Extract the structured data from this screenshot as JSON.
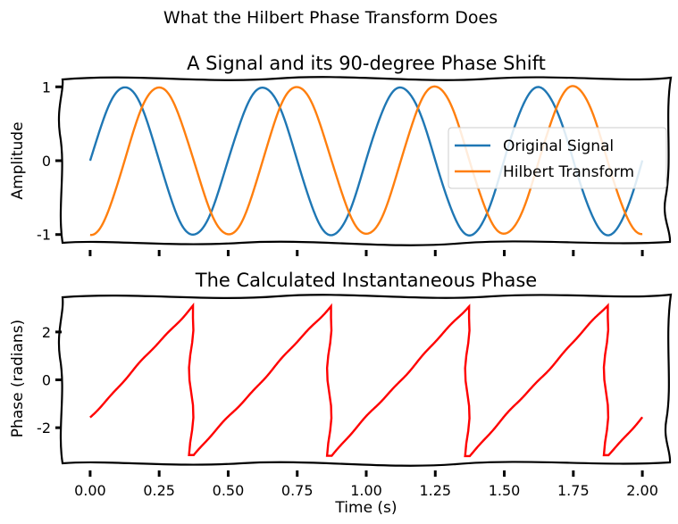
{
  "figure_title": "What the Hilbert Phase Transform Does",
  "chart_data": [
    {
      "type": "line",
      "title": "A Signal and its 90-degree Phase Shift",
      "xlabel": "",
      "ylabel": "Amplitude",
      "xlim": [
        -0.1,
        2.1
      ],
      "ylim": [
        -1.1,
        1.1
      ],
      "yticks": [
        1,
        0,
        -1
      ],
      "ytick_labels": [
        "1",
        "0",
        "-1"
      ],
      "xticks": [
        0,
        0.25,
        0.5,
        0.75,
        1.0,
        1.25,
        1.5,
        1.75,
        2.0
      ],
      "xtick_labels_shown": false,
      "legend_location": "center-right",
      "grid": false,
      "signal_frequency_hz": 2,
      "series": [
        {
          "name": "Original Signal",
          "function": "sin(2*pi*2*t)",
          "x_range": [
            0,
            2
          ],
          "color": "#1f77b4",
          "samples": {
            "x": [
              0,
              0.125,
              0.25,
              0.375,
              0.5,
              0.625,
              0.75,
              0.875,
              1.0,
              1.125,
              1.25,
              1.375,
              1.5,
              1.625,
              1.75,
              1.875,
              2.0
            ],
            "y": [
              0,
              1,
              0,
              -1,
              0,
              1,
              0,
              -1,
              0,
              1,
              0,
              -1,
              0,
              1,
              0,
              -1,
              0
            ]
          }
        },
        {
          "name": "Hilbert Transform",
          "function": "-cos(2*pi*2*t)",
          "x_range": [
            0,
            2
          ],
          "color": "#ff7f0e",
          "samples": {
            "x": [
              0,
              0.125,
              0.25,
              0.375,
              0.5,
              0.625,
              0.75,
              0.875,
              1.0,
              1.125,
              1.25,
              1.375,
              1.5,
              1.625,
              1.75,
              1.875,
              2.0
            ],
            "y": [
              -1,
              0,
              1,
              0,
              -1,
              0,
              1,
              0,
              -1,
              0,
              1,
              0,
              -1,
              0,
              1,
              0,
              -1
            ]
          }
        }
      ]
    },
    {
      "type": "line",
      "title": "The Calculated Instantaneous Phase",
      "xlabel": "Time (s)",
      "ylabel": "Phase (radians)",
      "xlim": [
        -0.1,
        2.1
      ],
      "ylim": [
        -3.45,
        3.45
      ],
      "yticks": [
        2,
        0,
        -2
      ],
      "ytick_labels": [
        "2",
        "0",
        "-2"
      ],
      "xticks": [
        0,
        0.25,
        0.5,
        0.75,
        1.0,
        1.25,
        1.5,
        1.75,
        2.0
      ],
      "xtick_labels": [
        "0.00",
        "0.25",
        "0.50",
        "0.75",
        "1.00",
        "1.25",
        "1.50",
        "1.75",
        "2.00"
      ],
      "grid": false,
      "series": [
        {
          "function": "wrapped phase of sin(2*pi*2*t) - pi/2",
          "x_range": [
            0,
            2
          ],
          "color": "#ff0000",
          "samples": {
            "x": [
              0,
              0.125,
              0.25,
              0.375,
              0.376,
              0.5,
              0.625,
              0.75,
              0.875,
              0.876,
              1.0,
              1.125,
              1.25,
              1.375,
              1.376,
              1.5,
              1.625,
              1.75,
              1.875,
              1.876,
              2.0
            ],
            "y": [
              -1.571,
              0,
              1.571,
              3.142,
              -3.142,
              -1.571,
              0,
              1.571,
              3.142,
              -3.142,
              -1.571,
              0,
              1.571,
              3.142,
              -3.142,
              -1.571,
              0,
              1.571,
              3.142,
              -3.142,
              -1.571
            ]
          }
        }
      ]
    }
  ],
  "colors": {
    "original": "#1f77b4",
    "hilbert": "#ff7f0e",
    "phase": "#ff0000",
    "frame": "#000000"
  }
}
